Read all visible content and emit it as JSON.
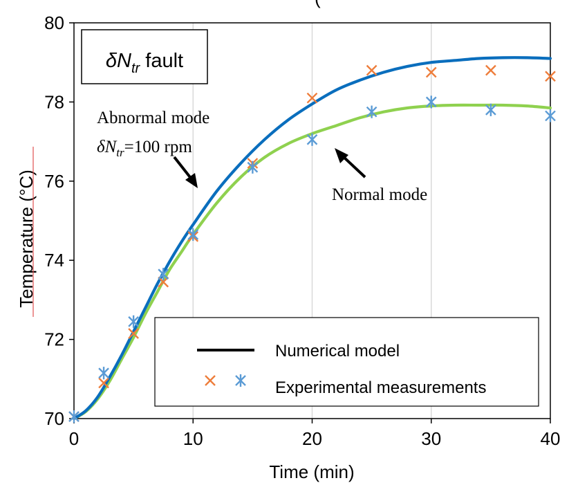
{
  "chart_data": {
    "type": "line",
    "top_title_fragment": "(",
    "fault_box": {
      "base": "δN",
      "subscript": "tr",
      "suffix": " fault"
    },
    "xlabel": "Time (min)",
    "ylabel": "Temperature (°C)",
    "xlim": [
      0,
      40
    ],
    "ylim": [
      70,
      80
    ],
    "xticks": [
      0,
      10,
      20,
      30,
      40
    ],
    "yticks": [
      70,
      72,
      74,
      76,
      78,
      80
    ],
    "grid": "vertical",
    "legend_position": "bottom-right",
    "legend": {
      "line_label": "Numerical model",
      "marker_label": "Experimental measurements"
    },
    "series": [
      {
        "kind": "model",
        "color": "#0a6ebd",
        "x": [
          0,
          1,
          2,
          3,
          4,
          5,
          6,
          7,
          8,
          9,
          10,
          12,
          14,
          16,
          18,
          20,
          22,
          24,
          26,
          28,
          30,
          32,
          34,
          36,
          38,
          40
        ],
        "y": [
          70.0,
          70.2,
          70.55,
          71.05,
          71.6,
          72.2,
          72.8,
          73.4,
          73.95,
          74.45,
          74.9,
          75.75,
          76.45,
          77.05,
          77.55,
          77.95,
          78.3,
          78.55,
          78.75,
          78.9,
          79.0,
          79.05,
          79.1,
          79.12,
          79.12,
          79.1
        ]
      },
      {
        "kind": "model",
        "color": "#8fd14f",
        "x": [
          0,
          1,
          2,
          3,
          4,
          5,
          6,
          7,
          8,
          9,
          10,
          12,
          14,
          16,
          18,
          20,
          22,
          24,
          26,
          28,
          30,
          32,
          34,
          36,
          38,
          40
        ],
        "y": [
          70.0,
          70.18,
          70.5,
          70.95,
          71.5,
          72.05,
          72.65,
          73.2,
          73.75,
          74.2,
          74.65,
          75.45,
          76.1,
          76.6,
          76.95,
          77.2,
          77.4,
          77.6,
          77.75,
          77.85,
          77.9,
          77.92,
          77.92,
          77.92,
          77.9,
          77.85
        ]
      },
      {
        "kind": "measurement",
        "marker": "x",
        "color": "#ee7d3b",
        "x": [
          0,
          2.5,
          5,
          7.5,
          10,
          15,
          20,
          25,
          30,
          35,
          40
        ],
        "y": [
          70.05,
          70.9,
          72.15,
          73.45,
          74.6,
          76.45,
          78.1,
          78.8,
          78.75,
          78.8,
          78.65
        ]
      },
      {
        "kind": "measurement",
        "marker": "asterisk",
        "color": "#5b9bd5",
        "x": [
          0,
          2.5,
          5,
          7.5,
          10,
          15,
          20,
          25,
          30,
          35,
          40
        ],
        "y": [
          70.05,
          71.15,
          72.45,
          73.65,
          74.65,
          76.35,
          77.05,
          77.75,
          78.0,
          77.8,
          77.65
        ]
      }
    ],
    "annotations": [
      {
        "line1": "Abnormal mode",
        "line2_base": "δN",
        "line2_sub": "tr",
        "line2_rest": "=100 rpm"
      },
      {
        "text": "Normal mode"
      }
    ],
    "colors": {
      "abnormal_line": "#0a6ebd",
      "normal_line": "#8fd14f",
      "abnormal_markers": "#ee7d3b",
      "normal_markers": "#5b9bd5",
      "grid": "#d9d9d9",
      "axis": "#000000",
      "ylabel_underline": "#e05050"
    }
  }
}
